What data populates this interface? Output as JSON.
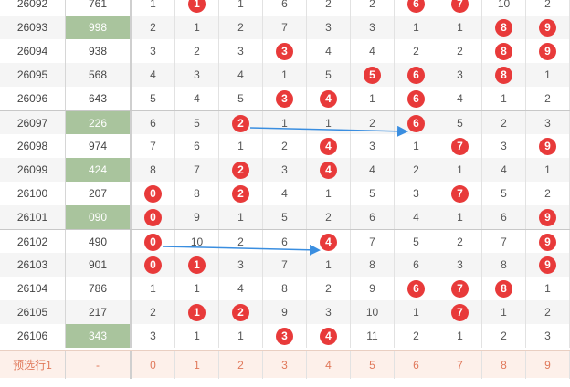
{
  "table": {
    "rows": [
      {
        "issue": "26092",
        "draw": "761",
        "hl": false,
        "digits": [
          {
            "v": "1",
            "hit": false
          },
          {
            "v": "1",
            "hit": true
          },
          {
            "v": "1",
            "hit": false
          },
          {
            "v": "6",
            "hit": false
          },
          {
            "v": "2",
            "hit": false
          },
          {
            "v": "2",
            "hit": false
          },
          {
            "v": "6",
            "hit": true
          },
          {
            "v": "7",
            "hit": true
          },
          {
            "v": "10",
            "hit": false
          },
          {
            "v": "2",
            "hit": false
          }
        ]
      },
      {
        "issue": "26093",
        "draw": "998",
        "hl": true,
        "digits": [
          {
            "v": "2",
            "hit": false
          },
          {
            "v": "1",
            "hit": false
          },
          {
            "v": "2",
            "hit": false
          },
          {
            "v": "7",
            "hit": false
          },
          {
            "v": "3",
            "hit": false
          },
          {
            "v": "3",
            "hit": false
          },
          {
            "v": "1",
            "hit": false
          },
          {
            "v": "1",
            "hit": false
          },
          {
            "v": "8",
            "hit": true
          },
          {
            "v": "9",
            "hit": true
          }
        ]
      },
      {
        "issue": "26094",
        "draw": "938",
        "hl": false,
        "digits": [
          {
            "v": "3",
            "hit": false
          },
          {
            "v": "2",
            "hit": false
          },
          {
            "v": "3",
            "hit": false
          },
          {
            "v": "3",
            "hit": true
          },
          {
            "v": "4",
            "hit": false
          },
          {
            "v": "4",
            "hit": false
          },
          {
            "v": "2",
            "hit": false
          },
          {
            "v": "2",
            "hit": false
          },
          {
            "v": "8",
            "hit": true
          },
          {
            "v": "9",
            "hit": true
          }
        ]
      },
      {
        "issue": "26095",
        "draw": "568",
        "hl": false,
        "digits": [
          {
            "v": "4",
            "hit": false
          },
          {
            "v": "3",
            "hit": false
          },
          {
            "v": "4",
            "hit": false
          },
          {
            "v": "1",
            "hit": false
          },
          {
            "v": "5",
            "hit": false
          },
          {
            "v": "5",
            "hit": true
          },
          {
            "v": "6",
            "hit": true
          },
          {
            "v": "3",
            "hit": false
          },
          {
            "v": "8",
            "hit": true
          },
          {
            "v": "1",
            "hit": false
          }
        ]
      },
      {
        "issue": "26096",
        "draw": "643",
        "hl": false,
        "digits": [
          {
            "v": "5",
            "hit": false
          },
          {
            "v": "4",
            "hit": false
          },
          {
            "v": "5",
            "hit": false
          },
          {
            "v": "3",
            "hit": true
          },
          {
            "v": "4",
            "hit": true
          },
          {
            "v": "1",
            "hit": false
          },
          {
            "v": "6",
            "hit": true
          },
          {
            "v": "4",
            "hit": false
          },
          {
            "v": "1",
            "hit": false
          },
          {
            "v": "2",
            "hit": false
          }
        ]
      },
      {
        "issue": "26097",
        "draw": "226",
        "hl": true,
        "digits": [
          {
            "v": "6",
            "hit": false
          },
          {
            "v": "5",
            "hit": false
          },
          {
            "v": "2",
            "hit": true
          },
          {
            "v": "1",
            "hit": false
          },
          {
            "v": "1",
            "hit": false
          },
          {
            "v": "2",
            "hit": false
          },
          {
            "v": "6",
            "hit": true
          },
          {
            "v": "5",
            "hit": false
          },
          {
            "v": "2",
            "hit": false
          },
          {
            "v": "3",
            "hit": false
          }
        ]
      },
      {
        "issue": "26098",
        "draw": "974",
        "hl": false,
        "digits": [
          {
            "v": "7",
            "hit": false
          },
          {
            "v": "6",
            "hit": false
          },
          {
            "v": "1",
            "hit": false
          },
          {
            "v": "2",
            "hit": false
          },
          {
            "v": "4",
            "hit": true
          },
          {
            "v": "3",
            "hit": false
          },
          {
            "v": "1",
            "hit": false
          },
          {
            "v": "7",
            "hit": true
          },
          {
            "v": "3",
            "hit": false
          },
          {
            "v": "9",
            "hit": true
          }
        ]
      },
      {
        "issue": "26099",
        "draw": "424",
        "hl": true,
        "digits": [
          {
            "v": "8",
            "hit": false
          },
          {
            "v": "7",
            "hit": false
          },
          {
            "v": "2",
            "hit": true
          },
          {
            "v": "3",
            "hit": false
          },
          {
            "v": "4",
            "hit": true
          },
          {
            "v": "4",
            "hit": false
          },
          {
            "v": "2",
            "hit": false
          },
          {
            "v": "1",
            "hit": false
          },
          {
            "v": "4",
            "hit": false
          },
          {
            "v": "1",
            "hit": false
          }
        ]
      },
      {
        "issue": "26100",
        "draw": "207",
        "hl": false,
        "digits": [
          {
            "v": "0",
            "hit": true
          },
          {
            "v": "8",
            "hit": false
          },
          {
            "v": "2",
            "hit": true
          },
          {
            "v": "4",
            "hit": false
          },
          {
            "v": "1",
            "hit": false
          },
          {
            "v": "5",
            "hit": false
          },
          {
            "v": "3",
            "hit": false
          },
          {
            "v": "7",
            "hit": true
          },
          {
            "v": "5",
            "hit": false
          },
          {
            "v": "2",
            "hit": false
          }
        ]
      },
      {
        "issue": "26101",
        "draw": "090",
        "hl": true,
        "digits": [
          {
            "v": "0",
            "hit": true
          },
          {
            "v": "9",
            "hit": false
          },
          {
            "v": "1",
            "hit": false
          },
          {
            "v": "5",
            "hit": false
          },
          {
            "v": "2",
            "hit": false
          },
          {
            "v": "6",
            "hit": false
          },
          {
            "v": "4",
            "hit": false
          },
          {
            "v": "1",
            "hit": false
          },
          {
            "v": "6",
            "hit": false
          },
          {
            "v": "9",
            "hit": true
          }
        ]
      },
      {
        "issue": "26102",
        "draw": "490",
        "hl": false,
        "digits": [
          {
            "v": "0",
            "hit": true
          },
          {
            "v": "10",
            "hit": false
          },
          {
            "v": "2",
            "hit": false
          },
          {
            "v": "6",
            "hit": false
          },
          {
            "v": "4",
            "hit": true
          },
          {
            "v": "7",
            "hit": false
          },
          {
            "v": "5",
            "hit": false
          },
          {
            "v": "2",
            "hit": false
          },
          {
            "v": "7",
            "hit": false
          },
          {
            "v": "9",
            "hit": true
          }
        ]
      },
      {
        "issue": "26103",
        "draw": "901",
        "hl": false,
        "digits": [
          {
            "v": "0",
            "hit": true
          },
          {
            "v": "1",
            "hit": true
          },
          {
            "v": "3",
            "hit": false
          },
          {
            "v": "7",
            "hit": false
          },
          {
            "v": "1",
            "hit": false
          },
          {
            "v": "8",
            "hit": false
          },
          {
            "v": "6",
            "hit": false
          },
          {
            "v": "3",
            "hit": false
          },
          {
            "v": "8",
            "hit": false
          },
          {
            "v": "9",
            "hit": true
          }
        ]
      },
      {
        "issue": "26104",
        "draw": "786",
        "hl": false,
        "digits": [
          {
            "v": "1",
            "hit": false
          },
          {
            "v": "1",
            "hit": false
          },
          {
            "v": "4",
            "hit": false
          },
          {
            "v": "8",
            "hit": false
          },
          {
            "v": "2",
            "hit": false
          },
          {
            "v": "9",
            "hit": false
          },
          {
            "v": "6",
            "hit": true
          },
          {
            "v": "7",
            "hit": true
          },
          {
            "v": "8",
            "hit": true
          },
          {
            "v": "1",
            "hit": false
          }
        ]
      },
      {
        "issue": "26105",
        "draw": "217",
        "hl": false,
        "digits": [
          {
            "v": "2",
            "hit": false
          },
          {
            "v": "1",
            "hit": true
          },
          {
            "v": "2",
            "hit": true
          },
          {
            "v": "9",
            "hit": false
          },
          {
            "v": "3",
            "hit": false
          },
          {
            "v": "10",
            "hit": false
          },
          {
            "v": "1",
            "hit": false
          },
          {
            "v": "7",
            "hit": true
          },
          {
            "v": "1",
            "hit": false
          },
          {
            "v": "2",
            "hit": false
          }
        ]
      },
      {
        "issue": "26106",
        "draw": "343",
        "hl": true,
        "digits": [
          {
            "v": "3",
            "hit": false
          },
          {
            "v": "1",
            "hit": false
          },
          {
            "v": "1",
            "hit": false
          },
          {
            "v": "3",
            "hit": true
          },
          {
            "v": "4",
            "hit": true
          },
          {
            "v": "11",
            "hit": false
          },
          {
            "v": "2",
            "hit": false
          },
          {
            "v": "1",
            "hit": false
          },
          {
            "v": "2",
            "hit": false
          },
          {
            "v": "3",
            "hit": false
          }
        ]
      }
    ],
    "footer": {
      "label": "预选行1",
      "draw": "-",
      "digits": [
        "0",
        "1",
        "2",
        "3",
        "4",
        "5",
        "6",
        "7",
        "8",
        "9"
      ]
    }
  },
  "colors": {
    "hit_ball": "#e83a3a",
    "highlight_draw": "#a9c49d",
    "arrow": "#3a8ee0",
    "footer_text": "#e0785a"
  },
  "annotations": [
    {
      "from_issue": "26097",
      "from_digit": "2",
      "to_digit": "6"
    },
    {
      "from_issue": "26102",
      "from_digit": "0",
      "to_digit": "4"
    }
  ]
}
